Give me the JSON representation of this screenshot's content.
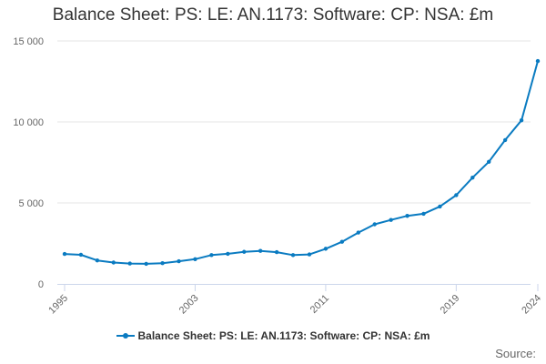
{
  "chart_data": {
    "type": "line",
    "title": "Balance Sheet: PS: LE: AN.1173: Software: CP: NSA: £m",
    "xlabel": "",
    "ylabel": "",
    "xlim": [
      1995,
      2024
    ],
    "ylim": [
      0,
      15000
    ],
    "yticks": [
      0,
      5000,
      10000,
      15000
    ],
    "ytick_labels": [
      "0",
      "5 000",
      "10 000",
      "15 000"
    ],
    "xticks": [
      1995,
      2003,
      2011,
      2019,
      2024
    ],
    "xtick_labels": [
      "1995",
      "2003",
      "2011",
      "2019",
      "2024"
    ],
    "grid": "horizontal",
    "legend_position": "bottom-center",
    "series": [
      {
        "name": "Balance Sheet: PS: LE: AN.1173: Software: CP: NSA: £m",
        "color": "#0a7bc1",
        "x": [
          1995,
          1996,
          1997,
          1998,
          1999,
          2000,
          2001,
          2002,
          2003,
          2004,
          2005,
          2006,
          2007,
          2008,
          2009,
          2010,
          2011,
          2012,
          2013,
          2014,
          2015,
          2016,
          2017,
          2018,
          2019,
          2020,
          2021,
          2022,
          2023,
          2024
        ],
        "values": [
          1850,
          1800,
          1450,
          1320,
          1260,
          1240,
          1280,
          1400,
          1530,
          1780,
          1860,
          1980,
          2040,
          1960,
          1780,
          1820,
          2170,
          2600,
          3170,
          3680,
          3950,
          4200,
          4330,
          4780,
          5480,
          6560,
          7540,
          8880,
          10100,
          13760
        ]
      }
    ]
  },
  "credits": "Source:"
}
